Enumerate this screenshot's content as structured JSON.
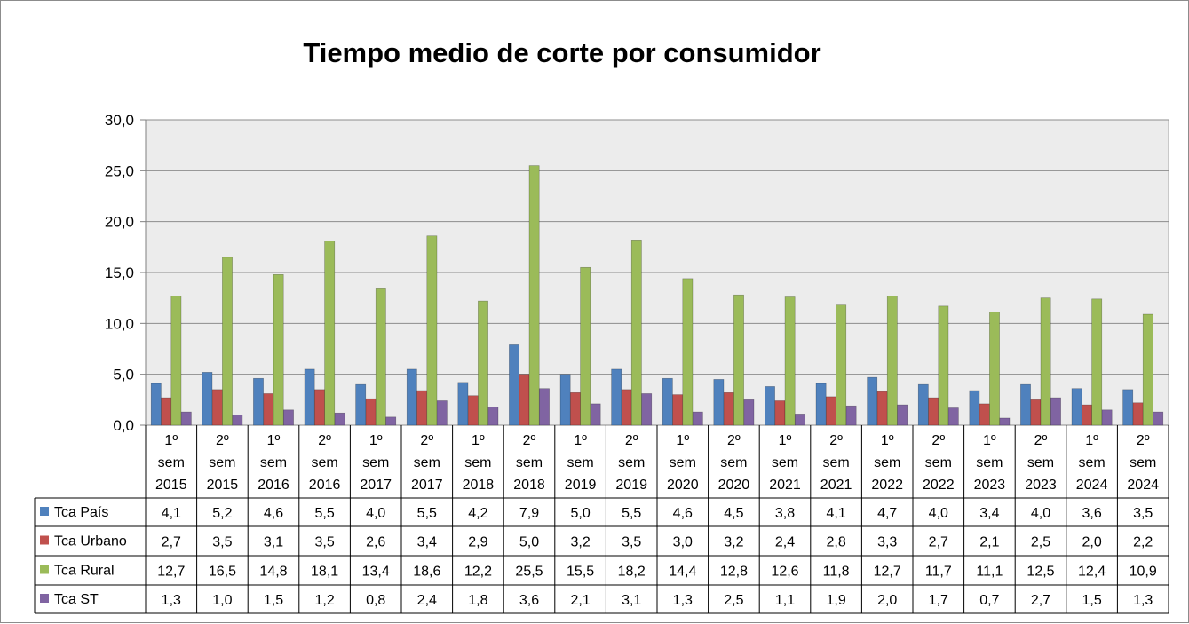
{
  "chart_data": {
    "type": "bar",
    "title": "Tiempo medio de corte por consumidor",
    "xlabel": "",
    "ylabel": "",
    "ylim": [
      0,
      30
    ],
    "yticks": [
      "0,0",
      "5,0",
      "10,0",
      "15,0",
      "20,0",
      "25,0",
      "30,0"
    ],
    "grid": true,
    "legend": "data-table-left",
    "categories": [
      [
        "1º",
        "sem",
        "2015"
      ],
      [
        "2º",
        "sem",
        "2015"
      ],
      [
        "1º",
        "sem",
        "2016"
      ],
      [
        "2º",
        "sem",
        "2016"
      ],
      [
        "1º",
        "sem",
        "2017"
      ],
      [
        "2º",
        "sem",
        "2017"
      ],
      [
        "1º",
        "sem",
        "2018"
      ],
      [
        "2º",
        "sem",
        "2018"
      ],
      [
        "1º",
        "sem",
        "2019"
      ],
      [
        "2º",
        "sem",
        "2019"
      ],
      [
        "1º",
        "sem",
        "2020"
      ],
      [
        "2º",
        "sem",
        "2020"
      ],
      [
        "1º",
        "sem",
        "2021"
      ],
      [
        "2º",
        "sem",
        "2021"
      ],
      [
        "1º",
        "sem",
        "2022"
      ],
      [
        "2º",
        "sem",
        "2022"
      ],
      [
        "1º",
        "sem",
        "2023"
      ],
      [
        "2º",
        "sem",
        "2023"
      ],
      [
        "1º",
        "sem",
        "2024"
      ],
      [
        "2º",
        "sem",
        "2024"
      ]
    ],
    "series": [
      {
        "name": "Tca País",
        "color": "#4f81bd",
        "values": [
          4.1,
          5.2,
          4.6,
          5.5,
          4.0,
          5.5,
          4.2,
          7.9,
          5.0,
          5.5,
          4.6,
          4.5,
          3.8,
          4.1,
          4.7,
          4.0,
          3.4,
          4.0,
          3.6,
          3.5
        ],
        "labels": [
          "4,1",
          "5,2",
          "4,6",
          "5,5",
          "4,0",
          "5,5",
          "4,2",
          "7,9",
          "5,0",
          "5,5",
          "4,6",
          "4,5",
          "3,8",
          "4,1",
          "4,7",
          "4,0",
          "3,4",
          "4,0",
          "3,6",
          "3,5"
        ]
      },
      {
        "name": "Tca Urbano",
        "color": "#c0504d",
        "values": [
          2.7,
          3.5,
          3.1,
          3.5,
          2.6,
          3.4,
          2.9,
          5.0,
          3.2,
          3.5,
          3.0,
          3.2,
          2.4,
          2.8,
          3.3,
          2.7,
          2.1,
          2.5,
          2.0,
          2.2
        ],
        "labels": [
          "2,7",
          "3,5",
          "3,1",
          "3,5",
          "2,6",
          "3,4",
          "2,9",
          "5,0",
          "3,2",
          "3,5",
          "3,0",
          "3,2",
          "2,4",
          "2,8",
          "3,3",
          "2,7",
          "2,1",
          "2,5",
          "2,0",
          "2,2"
        ]
      },
      {
        "name": "Tca Rural",
        "color": "#9bbb59",
        "values": [
          12.7,
          16.5,
          14.8,
          18.1,
          13.4,
          18.6,
          12.2,
          25.5,
          15.5,
          18.2,
          14.4,
          12.8,
          12.6,
          11.8,
          12.7,
          11.7,
          11.1,
          12.5,
          12.4,
          10.9
        ],
        "labels": [
          "12,7",
          "16,5",
          "14,8",
          "18,1",
          "13,4",
          "18,6",
          "12,2",
          "25,5",
          "15,5",
          "18,2",
          "14,4",
          "12,8",
          "12,6",
          "11,8",
          "12,7",
          "11,7",
          "11,1",
          "12,5",
          "12,4",
          "10,9"
        ]
      },
      {
        "name": "Tca ST",
        "color": "#8064a2",
        "values": [
          1.3,
          1.0,
          1.5,
          1.2,
          0.8,
          2.4,
          1.8,
          3.6,
          2.1,
          3.1,
          1.3,
          2.5,
          1.1,
          1.9,
          2.0,
          1.7,
          0.7,
          2.7,
          1.5,
          1.3
        ],
        "labels": [
          "1,3",
          "1,0",
          "1,5",
          "1,2",
          "0,8",
          "2,4",
          "1,8",
          "3,6",
          "2,1",
          "3,1",
          "1,3",
          "2,5",
          "1,1",
          "1,9",
          "2,0",
          "1,7",
          "0,7",
          "2,7",
          "1,5",
          "1,3"
        ]
      }
    ]
  }
}
